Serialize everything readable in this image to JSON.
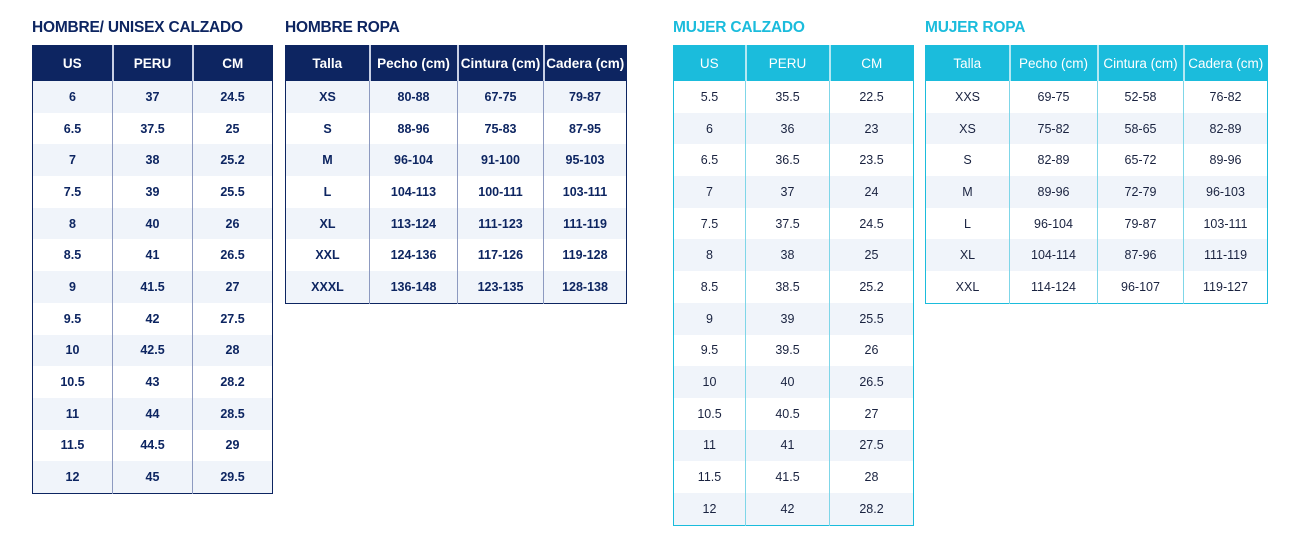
{
  "tables": [
    {
      "id": "hombre-calzado",
      "theme": "men",
      "title": "HOMBRE/ UNISEX CALZADO",
      "headers": [
        "US",
        "PERU",
        "CM"
      ],
      "rows": [
        [
          "6",
          "37",
          "24.5"
        ],
        [
          "6.5",
          "37.5",
          "25"
        ],
        [
          "7",
          "38",
          "25.2"
        ],
        [
          "7.5",
          "39",
          "25.5"
        ],
        [
          "8",
          "40",
          "26"
        ],
        [
          "8.5",
          "41",
          "26.5"
        ],
        [
          "9",
          "41.5",
          "27"
        ],
        [
          "9.5",
          "42",
          "27.5"
        ],
        [
          "10",
          "42.5",
          "28"
        ],
        [
          "10.5",
          "43",
          "28.2"
        ],
        [
          "11",
          "44",
          "28.5"
        ],
        [
          "11.5",
          "44.5",
          "29"
        ],
        [
          "12",
          "45",
          "29.5"
        ]
      ]
    },
    {
      "id": "hombre-ropa",
      "theme": "men",
      "title": "HOMBRE ROPA",
      "headers": [
        "Talla",
        "Pecho (cm)",
        "Cintura (cm)",
        "Cadera (cm)"
      ],
      "rows": [
        [
          "XS",
          "80-88",
          "67-75",
          "79-87"
        ],
        [
          "S",
          "88-96",
          "75-83",
          "87-95"
        ],
        [
          "M",
          "96-104",
          "91-100",
          "95-103"
        ],
        [
          "L",
          "104-113",
          "100-111",
          "103-111"
        ],
        [
          "XL",
          "113-124",
          "111-123",
          "111-119"
        ],
        [
          "XXL",
          "124-136",
          "117-126",
          "119-128"
        ],
        [
          "XXXL",
          "136-148",
          "123-135",
          "128-138"
        ]
      ]
    },
    {
      "id": "mujer-calzado",
      "theme": "women",
      "title": "MUJER CALZADO",
      "headers": [
        "US",
        "PERU",
        "CM"
      ],
      "rows": [
        [
          "5.5",
          "35.5",
          "22.5"
        ],
        [
          "6",
          "36",
          "23"
        ],
        [
          "6.5",
          "36.5",
          "23.5"
        ],
        [
          "7",
          "37",
          "24"
        ],
        [
          "7.5",
          "37.5",
          "24.5"
        ],
        [
          "8",
          "38",
          "25"
        ],
        [
          "8.5",
          "38.5",
          "25.2"
        ],
        [
          "9",
          "39",
          "25.5"
        ],
        [
          "9.5",
          "39.5",
          "26"
        ],
        [
          "10",
          "40",
          "26.5"
        ],
        [
          "10.5",
          "40.5",
          "27"
        ],
        [
          "11",
          "41",
          "27.5"
        ],
        [
          "11.5",
          "41.5",
          "28"
        ],
        [
          "12",
          "42",
          "28.2"
        ]
      ]
    },
    {
      "id": "mujer-ropa",
      "theme": "women",
      "title": "MUJER ROPA",
      "headers": [
        "Talla",
        "Pecho (cm)",
        "Cintura (cm)",
        "Cadera (cm)"
      ],
      "rows": [
        [
          "XXS",
          "69-75",
          "52-58",
          "76-82"
        ],
        [
          "XS",
          "75-82",
          "58-65",
          "82-89"
        ],
        [
          "S",
          "82-89",
          "65-72",
          "89-96"
        ],
        [
          "M",
          "89-96",
          "72-79",
          "96-103"
        ],
        [
          "L",
          "96-104",
          "79-87",
          "103-111"
        ],
        [
          "XL",
          "104-114",
          "87-96",
          "111-119"
        ],
        [
          "XXL",
          "114-124",
          "96-107",
          "119-127"
        ]
      ]
    }
  ],
  "colors": {
    "men": "#0d2561",
    "women": "#1bbcdc"
  }
}
